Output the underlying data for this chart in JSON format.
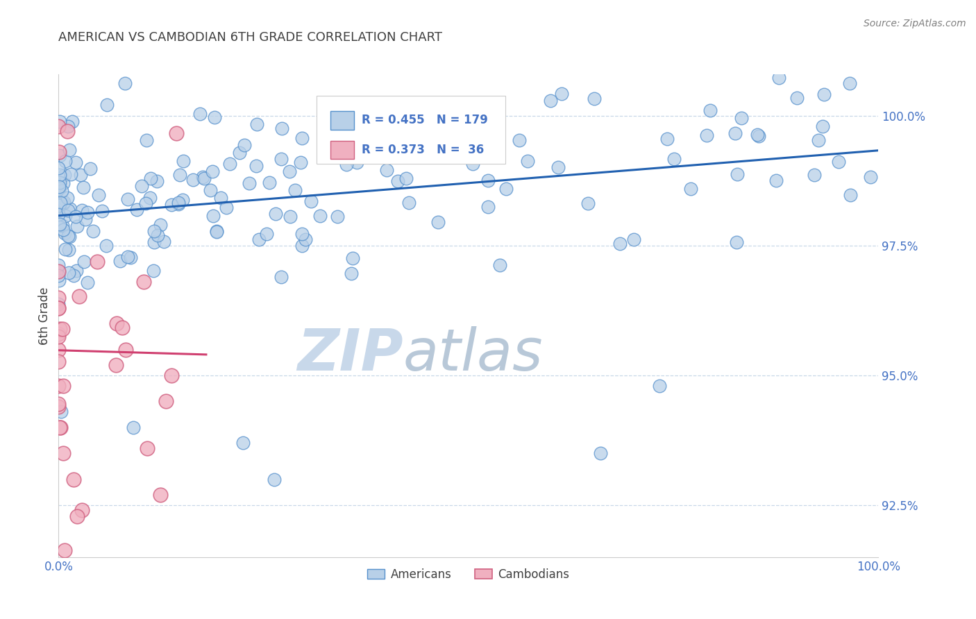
{
  "title": "AMERICAN VS CAMBODIAN 6TH GRADE CORRELATION CHART",
  "source": "Source: ZipAtlas.com",
  "ylabel": "6th Grade",
  "xlim": [
    0.0,
    1.0
  ],
  "ylim": [
    0.915,
    1.008
  ],
  "yticks": [
    0.925,
    0.95,
    0.975,
    1.0
  ],
  "ytick_labels": [
    "92.5%",
    "95.0%",
    "97.5%",
    "100.0%"
  ],
  "legend_american_R": "0.455",
  "legend_american_N": "179",
  "legend_cambodian_R": "0.373",
  "legend_cambodian_N": " 36",
  "american_color": "#b8d0e8",
  "american_edge": "#5590cc",
  "cambodian_color": "#f0b0c0",
  "cambodian_edge": "#d06080",
  "regression_american_color": "#2060b0",
  "regression_cambodian_color": "#d04070",
  "watermark_zip_color": "#c8d8ea",
  "watermark_atlas_color": "#b8c8d8",
  "title_color": "#404040",
  "axis_label_color": "#404040",
  "tick_label_color": "#4472c4",
  "source_color": "#808080",
  "grid_color": "#c8d8e8",
  "background_color": "#ffffff",
  "american_seed": 42,
  "cambodian_seed": 99
}
